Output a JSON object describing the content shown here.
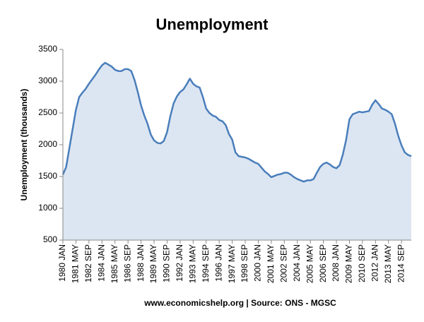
{
  "chart_data": {
    "type": "area",
    "title": "Unemployment",
    "y_label": "Unemployment (thousands)",
    "source": "www.economicshelp.org | Source: ONS - MGSC",
    "categories": [
      "1980 JAN",
      null,
      null,
      null,
      "1981 MAY",
      null,
      null,
      null,
      "1982 SEP",
      null,
      null,
      null,
      "1984 JAN",
      null,
      null,
      null,
      "1985 MAY",
      null,
      null,
      null,
      "1986 SEP",
      null,
      null,
      null,
      "1988 JAN",
      null,
      null,
      null,
      "1989 MAY",
      null,
      null,
      null,
      "1990 SEP",
      null,
      null,
      null,
      "1992 JAN",
      null,
      null,
      null,
      "1993 MAY",
      null,
      null,
      null,
      "1994 SEP",
      null,
      null,
      null,
      "1996 JAN",
      null,
      null,
      null,
      "1997 MAY",
      null,
      null,
      null,
      "1998 SEP",
      null,
      null,
      null,
      "2000 JAN",
      null,
      null,
      null,
      "2001 MAY",
      null,
      null,
      null,
      "2002 SEP",
      null,
      null,
      null,
      "2004 JAN",
      null,
      null,
      null,
      "2005 MAY",
      null,
      null,
      null,
      "2006 SEP",
      null,
      null,
      null,
      "2008 JAN",
      null,
      null,
      null,
      "2009 MAY",
      null,
      null,
      null,
      "2010 SEP",
      null,
      null,
      null,
      "2012 JAN",
      null,
      null,
      null,
      "2013 MAY",
      null,
      null,
      null,
      "2014 SEP",
      null,
      null,
      null
    ],
    "series": [
      {
        "name": "Unemployment",
        "color": "#4a7ebb",
        "fill": "#dce6f2",
        "values": [
          1530,
          1650,
          1950,
          2250,
          2550,
          2750,
          2820,
          2880,
          2960,
          3030,
          3100,
          3180,
          3250,
          3290,
          3260,
          3230,
          3180,
          3160,
          3160,
          3190,
          3190,
          3160,
          3020,
          2830,
          2620,
          2460,
          2330,
          2160,
          2070,
          2030,
          2020,
          2060,
          2200,
          2450,
          2650,
          2760,
          2830,
          2870,
          2950,
          3040,
          2960,
          2920,
          2900,
          2750,
          2570,
          2500,
          2460,
          2440,
          2390,
          2370,
          2310,
          2170,
          2080,
          1880,
          1820,
          1810,
          1800,
          1780,
          1750,
          1720,
          1700,
          1640,
          1580,
          1540,
          1490,
          1510,
          1530,
          1540,
          1560,
          1560,
          1530,
          1490,
          1460,
          1440,
          1420,
          1440,
          1440,
          1460,
          1560,
          1650,
          1700,
          1720,
          1690,
          1650,
          1630,
          1680,
          1850,
          2080,
          2400,
          2480,
          2500,
          2520,
          2510,
          2520,
          2530,
          2630,
          2700,
          2640,
          2570,
          2550,
          2520,
          2480,
          2330,
          2140,
          1990,
          1880,
          1840,
          1820
        ]
      }
    ],
    "ylim": [
      500,
      3500
    ],
    "yticks": [
      500,
      1000,
      1500,
      2000,
      2500,
      3000,
      3500
    ],
    "grid": false
  }
}
